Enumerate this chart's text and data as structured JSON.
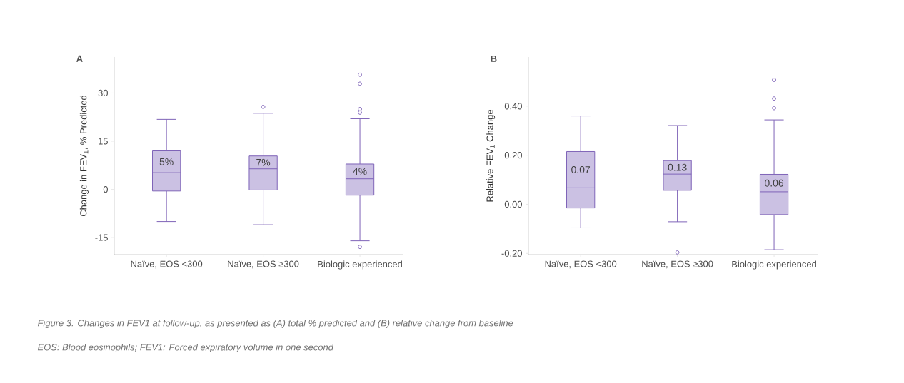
{
  "chart_data": [
    {
      "type": "box",
      "title": "A",
      "ylabel": "Change in FEV$_{1}$, % Predicted",
      "categories": [
        "Naïve, EOS <300",
        "Naïve, EOS ≥300",
        "Biologic experienced"
      ],
      "boxes": [
        {
          "low": -10.0,
          "q1": -0.5,
          "median": 5.2,
          "q3": 12.0,
          "high": 21.8
        },
        {
          "low": -11.0,
          "q1": -0.2,
          "median": 6.4,
          "q3": 10.4,
          "high": 23.7,
          "outliers": [
            25.7
          ]
        },
        {
          "low": -16.0,
          "q1": -1.8,
          "median": 3.3,
          "q3": 7.9,
          "high": 22.0,
          "outliers": [
            35.7,
            32.9,
            25.0,
            23.9,
            -17.9
          ]
        }
      ],
      "color": "#7e63b8",
      "ylim": [
        -20.3,
        41.2
      ],
      "yticks": [
        -15,
        0,
        15,
        30
      ],
      "grid": false,
      "annotations": [
        "5%",
        "7%",
        "4%",
        "Figure 3. Changes in FEV1 at follow-up, as presented as (A) total % predicted and (B) relative change from baseline",
        "EOS: Blood eosinophils; FEV1: Forced expiratory volume in one second"
      ]
    },
    {
      "type": "box",
      "title": "B",
      "ylabel": "Relative FEV$_{1}$ Change",
      "categories": [
        "Naïve, EOS <300",
        "Naïve, EOS ≥300",
        "Biologic experienced"
      ],
      "boxes": [
        {
          "low": -0.096,
          "q1": -0.015,
          "median": 0.067,
          "q3": 0.215,
          "high": 0.36
        },
        {
          "low": -0.071,
          "q1": 0.057,
          "median": 0.123,
          "q3": 0.178,
          "high": 0.321,
          "outliers": [
            -0.196
          ]
        },
        {
          "low": -0.185,
          "q1": -0.042,
          "median": 0.051,
          "q3": 0.122,
          "high": 0.344,
          "outliers": [
            0.507,
            0.431,
            0.392
          ]
        }
      ],
      "color": "#7e63b8",
      "ylim": [
        -0.205,
        0.6
      ],
      "yticks": [
        {
          "value": -0.2,
          "label": "-0.20"
        },
        {
          "value": 0,
          "label": "0.00"
        },
        {
          "value": 0.2,
          "label": "0.20"
        },
        {
          "value": 0.4,
          "label": "0.40"
        }
      ],
      "grid": false,
      "annotations": [
        "0.07",
        "0.13",
        "0.06"
      ]
    }
  ]
}
